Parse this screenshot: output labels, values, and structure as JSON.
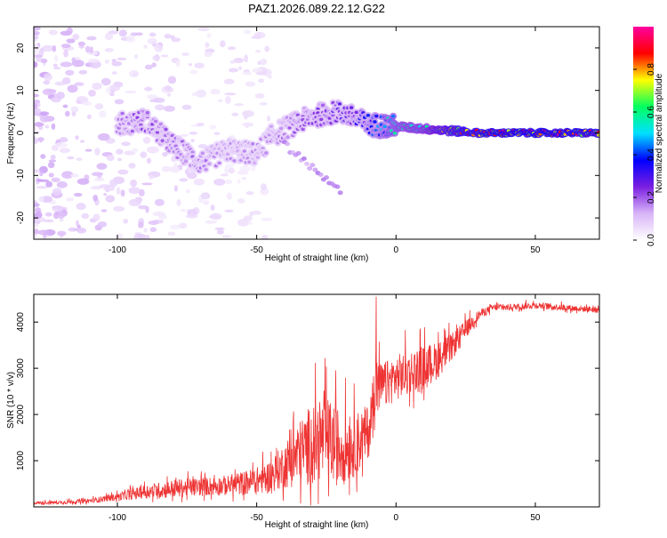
{
  "title": "PAZ1.2026.089.22.12.G22",
  "chart_data": [
    {
      "type": "heatmap",
      "xlabel": "Height of straight line (km)",
      "ylabel": "Frequency (Hz)",
      "xlim": [
        -130,
        73
      ],
      "ylim": [
        -25,
        25
      ],
      "xticks": [
        -100,
        -50,
        0,
        50
      ],
      "yticks": [
        -20,
        -10,
        0,
        10,
        20
      ],
      "xtick_labels": [
        "-100",
        "-50",
        "0",
        "50"
      ],
      "ytick_labels": [
        "-20",
        "-10",
        "0",
        "10",
        "20"
      ],
      "colorbar": {
        "label": "Normalized spectral amplitude",
        "range": [
          0,
          1
        ],
        "ticks": [
          0.0,
          0.2,
          0.4,
          0.6,
          0.8
        ],
        "tick_labels": [
          "0.0",
          "0.2",
          "0.4",
          "0.6",
          "0.8"
        ],
        "colors": [
          "#ffffff",
          "#d8b4f8",
          "#7a1fe0",
          "#0000ff",
          "#00e0ff",
          "#00ff60",
          "#ffff00",
          "#ff0000",
          "#ff00a0"
        ]
      },
      "ridge": [
        {
          "x": -100,
          "freq": 2,
          "amp": 0.2
        },
        {
          "x": -90,
          "freq": 3,
          "amp": 0.25
        },
        {
          "x": -80,
          "freq": -3,
          "amp": 0.22
        },
        {
          "x": -70,
          "freq": -7,
          "amp": 0.2
        },
        {
          "x": -60,
          "freq": -4,
          "amp": 0.18
        },
        {
          "x": -50,
          "freq": -5,
          "amp": 0.18
        },
        {
          "x": -45,
          "freq": -1,
          "amp": 0.2
        },
        {
          "x": -40,
          "freq": 1,
          "amp": 0.2
        },
        {
          "x": -30,
          "freq": 4,
          "amp": 0.28
        },
        {
          "x": -20,
          "freq": 5,
          "amp": 0.3
        },
        {
          "x": -10,
          "freq": 2,
          "amp": 0.4
        },
        {
          "x": 0,
          "freq": 1.5,
          "amp": 0.6
        },
        {
          "x": 10,
          "freq": 1,
          "amp": 0.65
        },
        {
          "x": 20,
          "freq": 0.5,
          "amp": 0.85
        },
        {
          "x": 30,
          "freq": 0,
          "amp": 0.95
        },
        {
          "x": 50,
          "freq": 0,
          "amp": 1.0
        },
        {
          "x": 73,
          "freq": 0,
          "amp": 0.95
        }
      ]
    },
    {
      "type": "line",
      "xlabel": "Height of straight line (km)",
      "ylabel": "SNR (10 * v/v)",
      "xlim": [
        -130,
        73
      ],
      "ylim": [
        0,
        4600
      ],
      "xticks": [
        -100,
        -50,
        0,
        50
      ],
      "yticks": [
        1000,
        2000,
        3000,
        4000
      ],
      "xtick_labels": [
        "-100",
        "-50",
        "0",
        "50"
      ],
      "ytick_labels": [
        "1000",
        "2000",
        "3000",
        "4000"
      ],
      "line_color": "#ee3333",
      "series": [
        {
          "name": "SNR",
          "x": [
            -130,
            -120,
            -110,
            -100,
            -90,
            -80,
            -70,
            -60,
            -50,
            -45,
            -40,
            -35,
            -30,
            -25,
            -20,
            -15,
            -10,
            -7,
            -5,
            0,
            5,
            10,
            15,
            20,
            25,
            30,
            35,
            40,
            50,
            60,
            73
          ],
          "y": [
            80,
            90,
            120,
            200,
            300,
            350,
            400,
            420,
            500,
            600,
            800,
            1000,
            1200,
            1300,
            1100,
            1200,
            1500,
            2400,
            2500,
            2700,
            2800,
            2900,
            3100,
            3400,
            3800,
            4150,
            4300,
            4300,
            4350,
            4300,
            4250
          ],
          "noise": [
            30,
            40,
            50,
            80,
            150,
            200,
            200,
            220,
            300,
            350,
            500,
            700,
            900,
            900,
            850,
            700,
            600,
            700,
            500,
            500,
            500,
            500,
            400,
            300,
            200,
            100,
            80,
            70,
            70,
            70,
            70
          ]
        }
      ]
    }
  ]
}
